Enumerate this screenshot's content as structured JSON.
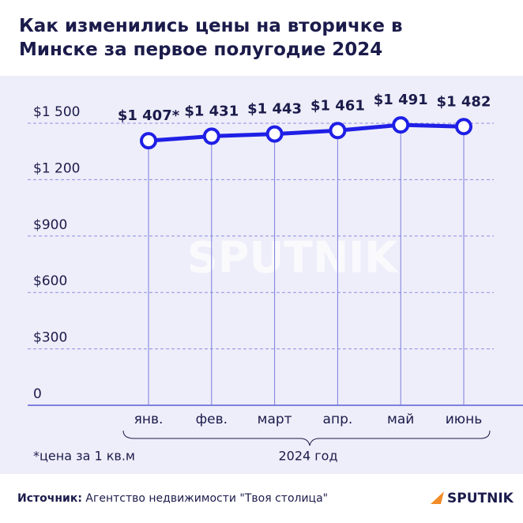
{
  "chart_data": {
    "type": "line",
    "title": "Как изменились цены на вторичке в Минске за первое полугодие 2024",
    "categories": [
      "янв.",
      "фев.",
      "март",
      "апр.",
      "май",
      "июнь"
    ],
    "values": [
      1407,
      1431,
      1443,
      1461,
      1491,
      1482
    ],
    "value_labels": [
      "$1 407*",
      "$1 431",
      "$1 443",
      "$1 461",
      "$1 491",
      "$1 482"
    ],
    "color": "#1f1fe6",
    "ylim": [
      0,
      1500
    ],
    "yticks": [
      0,
      {
        "value": 300,
        "label": "$300"
      },
      {
        "value": 600,
        "label": "$600"
      },
      {
        "value": 900,
        "label": "$900"
      },
      {
        "value": 1200,
        "label": "$1 200"
      },
      {
        "value": 1500,
        "label": "$1 500"
      }
    ],
    "grid": true,
    "xlabel": "2024 год",
    "footnote": "*цена за 1 кв.м",
    "source_label": "Источник:",
    "source": "Агентство недвижимости \"Твоя столица\"",
    "logo": "SPUTNIK"
  }
}
